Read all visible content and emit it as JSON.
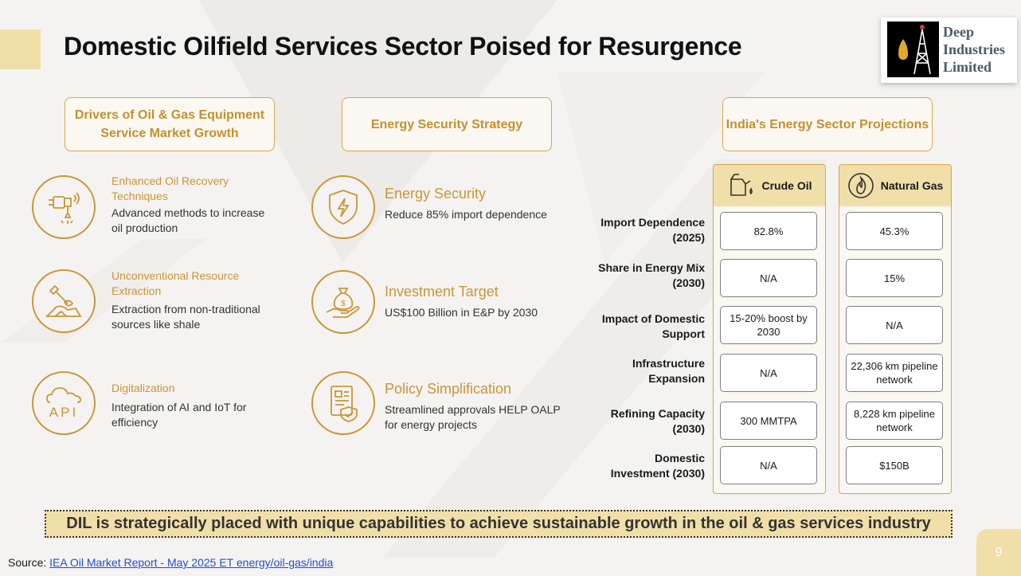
{
  "slide": {
    "title": "Domestic Oilfield Services Sector Poised for Resurgence",
    "page_number": "9"
  },
  "logo": {
    "line1": "Deep",
    "line2": "Industries",
    "line3": "Limited"
  },
  "headers": {
    "drivers": "Drivers of Oil & Gas Equipment Service Market Growth",
    "energy_security": "Energy Security Strategy",
    "projections": "India's Energy Sector Projections"
  },
  "drivers": [
    {
      "title": "Enhanced Oil Recovery Techniques",
      "desc": "Advanced methods to increase oil production",
      "icon": "drill-icon"
    },
    {
      "title": "Unconventional Resource Extraction",
      "desc": "Extraction from non-traditional sources like shale",
      "icon": "shovel-icon"
    },
    {
      "title": "Digitalization",
      "desc": "Integration of AI and IoT for efficiency",
      "icon": "cloud-api-icon",
      "icon_text": "API"
    }
  ],
  "strategy": [
    {
      "title": "Energy Security",
      "desc": "Reduce 85% import dependence",
      "icon": "shield-bolt-icon"
    },
    {
      "title": "Investment Target",
      "desc": "US$100 Billion in E&P by 2030",
      "icon": "money-bag-hand-icon"
    },
    {
      "title": "Policy Simplification",
      "desc": "Streamlined approvals HELP OALP for energy projects",
      "icon": "document-check-icon"
    }
  ],
  "projections": {
    "columns": [
      {
        "name": "Crude Oil",
        "icon": "oil-can-icon"
      },
      {
        "name": "Natural Gas",
        "icon": "flame-icon"
      }
    ],
    "rows": [
      {
        "label": "Import Dependence (2025)",
        "crude": "82.8%",
        "gas": "45.3%"
      },
      {
        "label": "Share in Energy Mix (2030)",
        "crude": "N/A",
        "gas": "15%"
      },
      {
        "label": "Impact of Domestic Support",
        "crude": "15-20% boost by 2030",
        "gas": "N/A"
      },
      {
        "label": "Infrastructure Expansion",
        "crude": "N/A",
        "gas": "22,306 km pipeline network"
      },
      {
        "label": "Refining Capacity (2030)",
        "crude": "300 MMTPA",
        "gas": "8,228 km pipeline network"
      },
      {
        "label": "Domestic Investment (2030)",
        "crude": "N/A",
        "gas": "$150B"
      }
    ]
  },
  "banner": "DIL is strategically placed with unique capabilities to achieve sustainable growth in the oil & gas services industry",
  "source": {
    "label": "Source:",
    "link1": "IEA  Oil Market Report - May 2025 ",
    "link2": "ET energy/oil-gas/india"
  },
  "colors": {
    "accent_gold": "#c99638",
    "light_gold": "#f1dfa9",
    "border_gold": "#d4a84e"
  }
}
